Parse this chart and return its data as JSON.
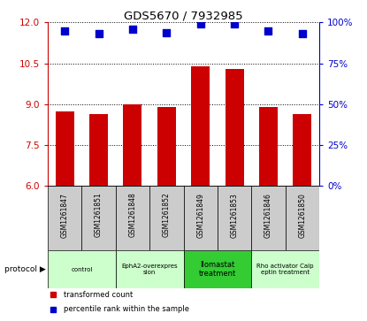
{
  "title": "GDS5670 / 7932985",
  "samples": [
    "GSM1261847",
    "GSM1261851",
    "GSM1261848",
    "GSM1261852",
    "GSM1261849",
    "GSM1261853",
    "GSM1261846",
    "GSM1261850"
  ],
  "transformed_counts": [
    8.75,
    8.65,
    9.0,
    8.9,
    10.4,
    10.3,
    8.9,
    8.65
  ],
  "percentile_ranks": [
    95,
    93,
    96,
    94,
    99,
    99,
    95,
    93
  ],
  "ylim_left": [
    6,
    12
  ],
  "ylim_right": [
    0,
    100
  ],
  "yticks_left": [
    6,
    7.5,
    9,
    10.5,
    12
  ],
  "yticks_right": [
    0,
    25,
    50,
    75,
    100
  ],
  "bar_color": "#cc0000",
  "dot_color": "#0000cc",
  "protocol_groups": [
    {
      "label": "control",
      "start": 0,
      "end": 2,
      "color": "#ccffcc"
    },
    {
      "label": "EphA2-overexpres\nsion",
      "start": 2,
      "end": 4,
      "color": "#ccffcc"
    },
    {
      "label": "Ilomastat\ntreatment",
      "start": 4,
      "end": 6,
      "color": "#33cc33"
    },
    {
      "label": "Rho activator Calp\neptin treatment",
      "start": 6,
      "end": 8,
      "color": "#ccffcc"
    }
  ],
  "background_color": "#ffffff",
  "left_axis_color": "#cc0000",
  "right_axis_color": "#0000cc",
  "bar_width": 0.55,
  "dot_size": 30,
  "gsm_bg_color": "#cccccc",
  "legend_bar_label": "transformed count",
  "legend_dot_label": "percentile rank within the sample",
  "protocol_label": "protocol"
}
